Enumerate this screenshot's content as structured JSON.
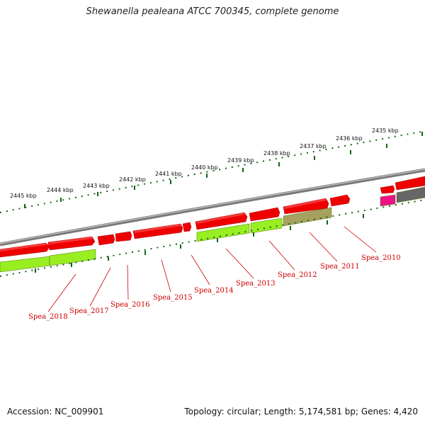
{
  "title": "Shewanella pealeana ATCC 700345, complete genome",
  "footer": {
    "accession": "Accession: NC_009901",
    "summary": "Topology: circular; Length: 5,174,581 bp; Genes: 4,420"
  },
  "scale_labels": [
    "2445 kbp",
    "2444 kbp",
    "2443 kbp",
    "2442 kbp",
    "2441 kbp",
    "2440 kbp",
    "2439 kbp",
    "2438 kbp",
    "2437 kbp",
    "2436 kbp",
    "2435 kbp"
  ],
  "gene_labels": [
    "Spea_2018",
    "Spea_2017",
    "Spea_2016",
    "Spea_2015",
    "Spea_2014",
    "Spea_2013",
    "Spea_2012",
    "Spea_2011",
    "Spea_2010"
  ],
  "colors": {
    "gene_red": "#ee0000",
    "gene_green": "#99ee22",
    "gene_olive": "#a8a060",
    "gene_pink": "#ee1188",
    "gene_gray": "#666666",
    "backbone": "#888888",
    "ticks": "#116611",
    "label_red": "#cc0000"
  }
}
